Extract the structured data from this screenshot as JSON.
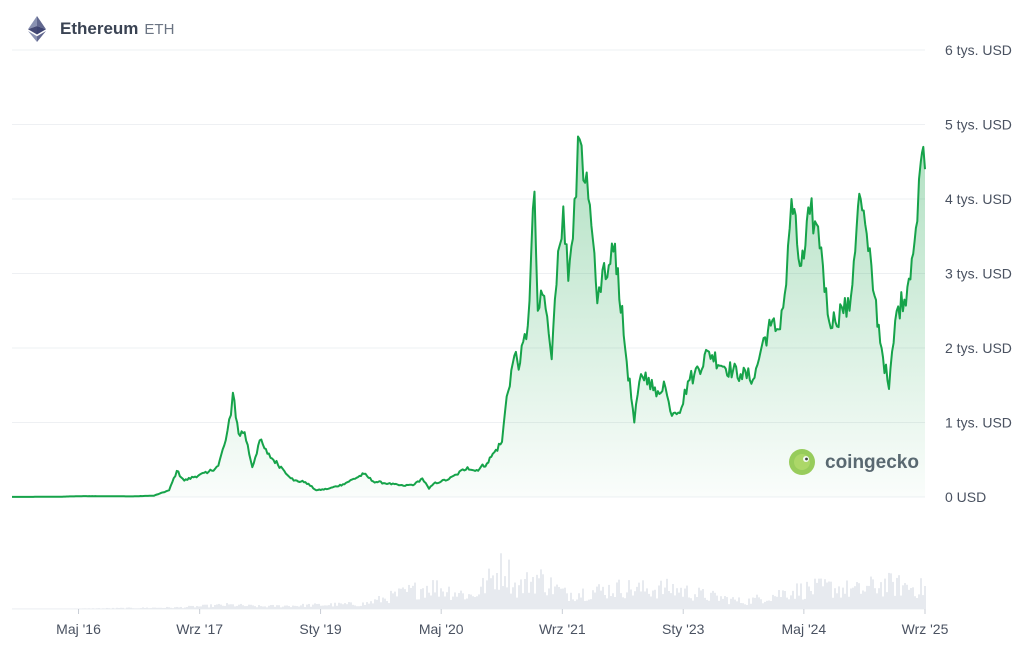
{
  "header": {
    "title": "Ethereum",
    "symbol": "ETH",
    "icon": "ethereum-icon"
  },
  "watermark": {
    "text": "coingecko",
    "icon": "gecko-logo-icon"
  },
  "colors": {
    "line": "#16a34a",
    "fill_top": "#16a34a",
    "grid": "#eef0f3",
    "volume": "#e7eaef"
  },
  "chart_data": {
    "type": "area",
    "title": "",
    "xlabel": "",
    "ylabel": "",
    "ylim": [
      0,
      6000
    ],
    "y_ticks": [
      {
        "value": 6000,
        "label": "6 tys. USD"
      },
      {
        "value": 5000,
        "label": "5 tys. USD"
      },
      {
        "value": 4000,
        "label": "4 tys. USD"
      },
      {
        "value": 3000,
        "label": "3 tys. USD"
      },
      {
        "value": 2000,
        "label": "2 tys. USD"
      },
      {
        "value": 1000,
        "label": "1 tys. USD"
      },
      {
        "value": 0,
        "label": "0 USD"
      }
    ],
    "x_ticks": [
      {
        "date": "2016-05-01",
        "label": "Maj '16"
      },
      {
        "date": "2017-09-01",
        "label": "Wrz '17"
      },
      {
        "date": "2019-01-01",
        "label": "Sty '19"
      },
      {
        "date": "2020-05-01",
        "label": "Maj '20"
      },
      {
        "date": "2021-09-01",
        "label": "Wrz '21"
      },
      {
        "date": "2023-01-01",
        "label": "Sty '23"
      },
      {
        "date": "2024-05-01",
        "label": "Maj '24"
      },
      {
        "date": "2025-09-01",
        "label": "Wrz '25"
      }
    ],
    "xlim": [
      "2015-08-07",
      "2025-09-01"
    ],
    "grid": true,
    "series": [
      {
        "x": [
          "2015-08-07",
          "2016-02-01",
          "2016-06-01",
          "2016-12-01",
          "2017-03-01",
          "2017-05-01",
          "2017-06-01",
          "2017-07-01",
          "2017-09-01",
          "2017-10-01",
          "2017-11-15",
          "2017-12-15",
          "2018-01-05",
          "2018-01-13",
          "2018-02-05",
          "2018-03-01",
          "2018-04-01",
          "2018-05-01",
          "2018-06-01",
          "2018-08-01",
          "2018-09-15",
          "2018-11-01",
          "2018-12-15",
          "2019-02-01",
          "2019-04-01",
          "2019-06-25",
          "2019-08-01",
          "2019-10-01",
          "2019-12-01",
          "2020-01-15",
          "2020-02-15",
          "2020-03-13",
          "2020-04-01",
          "2020-05-01",
          "2020-06-01",
          "2020-07-01",
          "2020-08-15",
          "2020-09-15",
          "2020-11-01",
          "2020-12-01",
          "2021-01-01",
          "2021-01-20",
          "2021-02-20",
          "2021-03-15",
          "2021-04-15",
          "2021-05-12",
          "2021-05-25",
          "2021-06-20",
          "2021-07-20",
          "2021-08-15",
          "2021-09-05",
          "2021-09-25",
          "2021-10-20",
          "2021-11-10",
          "2021-11-25",
          "2021-12-15",
          "2022-01-20",
          "2022-02-10",
          "2022-03-01",
          "2022-04-01",
          "2022-05-12",
          "2022-06-18",
          "2022-07-15",
          "2022-08-15",
          "2022-09-15",
          "2022-10-15",
          "2022-11-10",
          "2022-12-25",
          "2023-01-20",
          "2023-02-15",
          "2023-04-15",
          "2023-06-15",
          "2023-08-20",
          "2023-10-15",
          "2023-11-15",
          "2023-12-20",
          "2024-01-20",
          "2024-02-20",
          "2024-03-12",
          "2024-04-15",
          "2024-05-01",
          "2024-05-25",
          "2024-06-15",
          "2024-07-10",
          "2024-08-05",
          "2024-09-05",
          "2024-10-01",
          "2024-11-01",
          "2024-12-05",
          "2024-12-16",
          "2025-01-15",
          "2025-02-10",
          "2025-03-10",
          "2025-04-09",
          "2025-05-10",
          "2025-06-10",
          "2025-07-10",
          "2025-08-01",
          "2025-08-15",
          "2025-08-25",
          "2025-09-01"
        ],
        "y": [
          1,
          3,
          12,
          8,
          18,
          90,
          350,
          220,
          300,
          320,
          420,
          760,
          1100,
          1400,
          850,
          870,
          400,
          760,
          580,
          380,
          220,
          200,
          90,
          110,
          170,
          310,
          210,
          180,
          150,
          170,
          250,
          110,
          180,
          210,
          240,
          300,
          400,
          350,
          450,
          600,
          740,
          1350,
          1900,
          1800,
          2300,
          4100,
          2500,
          2700,
          1850,
          3300,
          3900,
          2900,
          4000,
          4800,
          4250,
          4000,
          2600,
          3050,
          2950,
          3400,
          2000,
          1000,
          1650,
          1600,
          1350,
          1550,
          1150,
          1200,
          1550,
          1650,
          1950,
          1750,
          1650,
          1600,
          2050,
          2300,
          2250,
          2850,
          4000,
          3100,
          3200,
          3800,
          3700,
          3350,
          2450,
          2350,
          2550,
          2500,
          3900,
          4000,
          3300,
          2700,
          2000,
          1450,
          2500,
          2650,
          3200,
          3700,
          4500,
          4700,
          4400
        ],
        "volume_x": [
          "2015-08-07",
          "2016-06-01",
          "2017-06-01",
          "2017-12-20",
          "2018-05-01",
          "2019-06-25",
          "2020-03-12",
          "2020-09-01",
          "2021-01-11",
          "2021-02-22",
          "2021-05-19",
          "2021-09-07",
          "2021-12-04",
          "2022-05-10",
          "2022-06-13",
          "2022-11-09",
          "2023-03-11",
          "2023-09-01",
          "2024-03-05",
          "2024-08-05",
          "2024-12-09",
          "2025-02-03",
          "2025-04-07",
          "2025-08-25"
        ],
        "volume_y": [
          0.0,
          0.01,
          0.03,
          0.08,
          0.05,
          0.1,
          0.45,
          0.25,
          0.85,
          0.4,
          0.62,
          0.3,
          0.33,
          0.42,
          0.38,
          0.4,
          0.28,
          0.14,
          0.35,
          0.42,
          0.36,
          0.45,
          0.48,
          0.4
        ]
      }
    ]
  }
}
